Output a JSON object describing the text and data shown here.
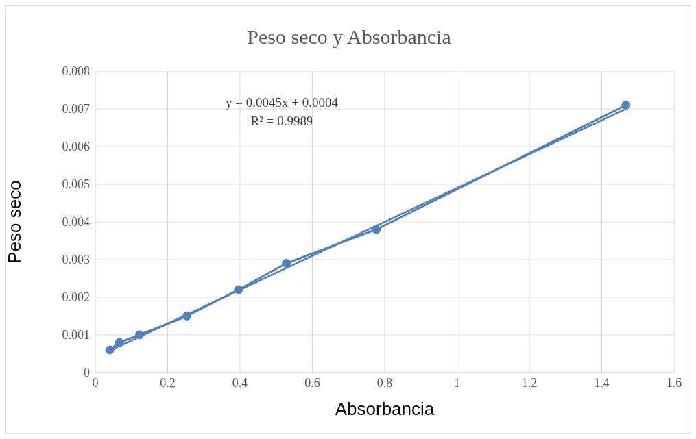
{
  "chart_data": {
    "type": "line",
    "title": "Peso seco y Absorbancia",
    "xlabel": "Absorbancia",
    "ylabel": "Peso seco",
    "annotations": [
      "y = 0.0045x + 0.0004",
      "R² = 0.9989"
    ],
    "series": [
      {
        "color": "#4f81bd",
        "x": [
          0.04,
          0.067,
          0.122,
          0.253,
          0.396,
          0.528,
          0.777,
          1.467
        ],
        "values": [
          0.0006,
          0.0008,
          0.001,
          0.0015,
          0.0022,
          0.0029,
          0.0038,
          0.0071
        ],
        "marker": "circle",
        "line_style": "solid"
      },
      {
        "color": "#4f81bd",
        "x": [
          0.04,
          1.467
        ],
        "values": [
          0.00058,
          0.007
        ],
        "marker": "none",
        "line_style": "dotted"
      }
    ],
    "xlim": [
      0,
      1.6
    ],
    "xticks": [
      0,
      0.2,
      0.4,
      0.6,
      0.8,
      1,
      1.2,
      1.4,
      1.6
    ],
    "ylim": [
      0,
      0.008
    ],
    "yticks": [
      0,
      0.001,
      0.002,
      0.003,
      0.004,
      0.005,
      0.006,
      0.007,
      0.008
    ],
    "grid": true,
    "legend": false
  }
}
